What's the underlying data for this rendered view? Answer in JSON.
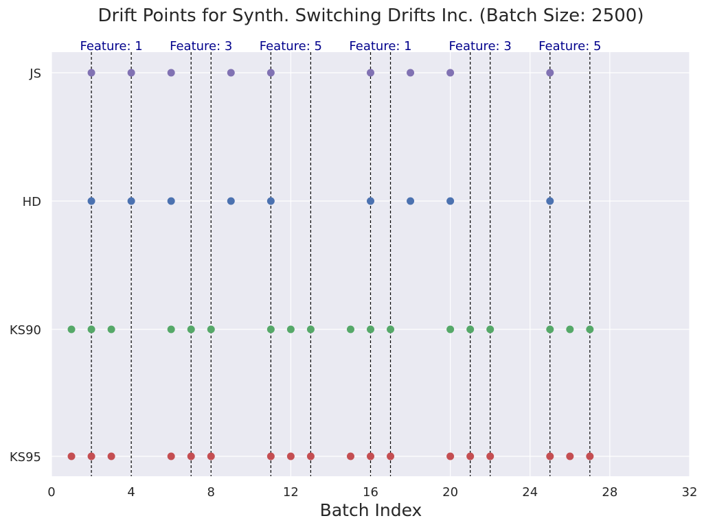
{
  "chart_data": {
    "type": "scatter",
    "title": "Drift Points for Synth. Switching Drifts Inc. (Batch Size: 2500)",
    "xlabel": "Batch Index",
    "ylabel": "",
    "xlim": [
      0,
      32
    ],
    "xticks": [
      "0",
      "4",
      "8",
      "12",
      "16",
      "20",
      "24",
      "28",
      "32"
    ],
    "xtick_values": [
      0,
      4,
      8,
      12,
      16,
      20,
      24,
      28,
      32
    ],
    "categories": [
      "KS95",
      "KS90",
      "HD",
      "JS"
    ],
    "grid": true,
    "series": [
      {
        "name": "JS",
        "color": "#8172b3",
        "x": [
          2,
          4,
          6,
          9,
          11,
          16,
          18,
          20,
          25
        ]
      },
      {
        "name": "HD",
        "color": "#4c72b0",
        "x": [
          2,
          4,
          6,
          9,
          11,
          16,
          18,
          20,
          25
        ]
      },
      {
        "name": "KS90",
        "color": "#55a868",
        "x": [
          1,
          2,
          3,
          6,
          7,
          8,
          11,
          12,
          13,
          15,
          16,
          17,
          20,
          21,
          22,
          25,
          26,
          27
        ]
      },
      {
        "name": "KS95",
        "color": "#c44e52",
        "x": [
          1,
          2,
          3,
          6,
          7,
          8,
          11,
          12,
          13,
          15,
          16,
          17,
          20,
          21,
          22,
          25,
          26,
          27
        ]
      }
    ],
    "drift_lines": [
      2,
      4,
      7,
      8,
      11,
      13,
      16,
      17,
      21,
      22,
      25,
      27
    ],
    "annotations": [
      {
        "text": "Feature: 1",
        "x": 3
      },
      {
        "text": "Feature: 3",
        "x": 7.5
      },
      {
        "text": "Feature: 5",
        "x": 12
      },
      {
        "text": "Feature: 1",
        "x": 16.5
      },
      {
        "text": "Feature: 3",
        "x": 21.5
      },
      {
        "text": "Feature: 5",
        "x": 26
      }
    ],
    "colors": {
      "background": "#eaeaf2",
      "grid": "#ffffff",
      "drift_line": "#000000",
      "annotation": "#00008b"
    }
  }
}
